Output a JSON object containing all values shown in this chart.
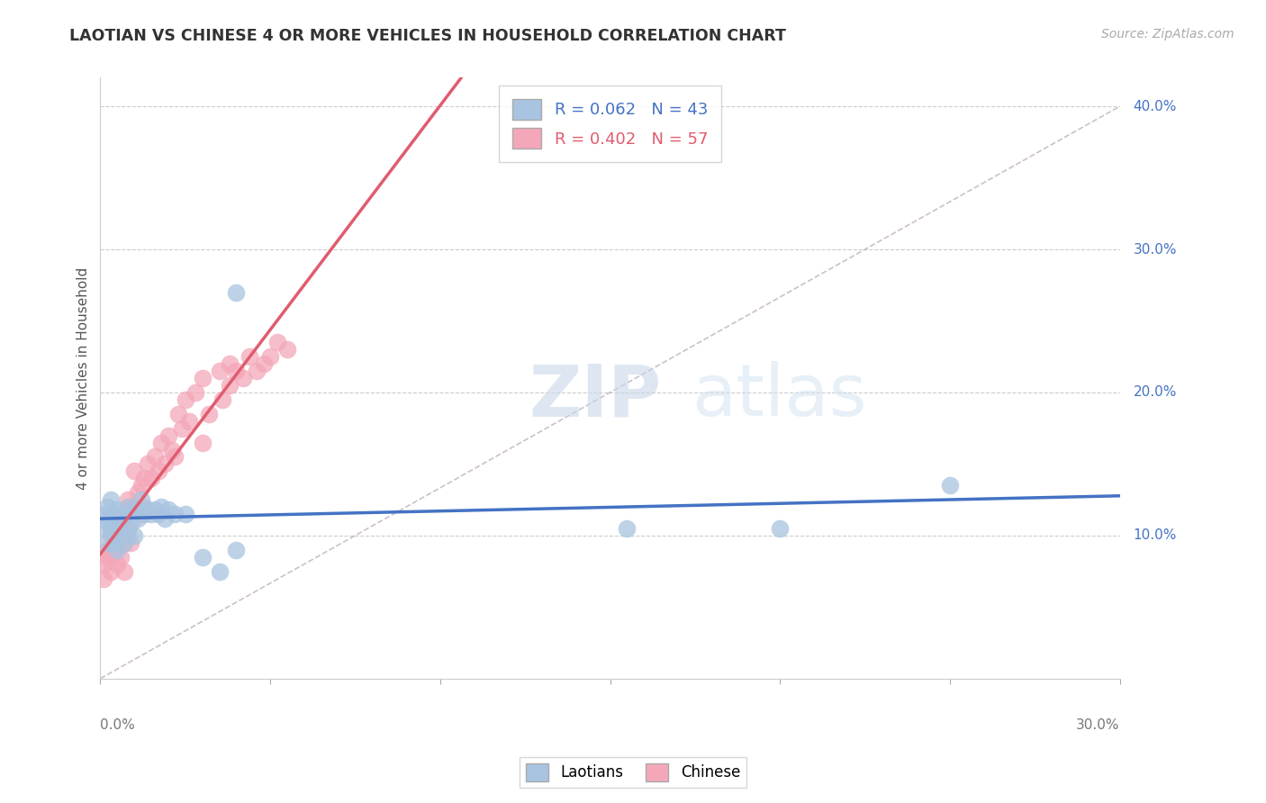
{
  "title": "LAOTIAN VS CHINESE 4 OR MORE VEHICLES IN HOUSEHOLD CORRELATION CHART",
  "source_text": "Source: ZipAtlas.com",
  "ylabel": "4 or more Vehicles in Household",
  "ylabel_ticks": [
    "10.0%",
    "20.0%",
    "30.0%",
    "40.0%"
  ],
  "xlim": [
    0.0,
    0.3
  ],
  "ylim": [
    0.0,
    0.42
  ],
  "yticks": [
    0.1,
    0.2,
    0.3,
    0.4
  ],
  "xticks": [
    0.0,
    0.05,
    0.1,
    0.15,
    0.2,
    0.25,
    0.3
  ],
  "laotian_x": [
    0.001,
    0.001,
    0.002,
    0.002,
    0.002,
    0.003,
    0.003,
    0.003,
    0.004,
    0.004,
    0.004,
    0.005,
    0.005,
    0.005,
    0.006,
    0.006,
    0.007,
    0.007,
    0.008,
    0.008,
    0.009,
    0.009,
    0.01,
    0.01,
    0.011,
    0.012,
    0.013,
    0.014,
    0.015,
    0.016,
    0.017,
    0.018,
    0.019,
    0.02,
    0.022,
    0.025,
    0.03,
    0.035,
    0.04,
    0.04,
    0.155,
    0.2,
    0.25
  ],
  "laotian_y": [
    0.115,
    0.105,
    0.12,
    0.11,
    0.095,
    0.115,
    0.105,
    0.125,
    0.112,
    0.1,
    0.095,
    0.118,
    0.108,
    0.09,
    0.115,
    0.105,
    0.112,
    0.095,
    0.12,
    0.1,
    0.115,
    0.108,
    0.118,
    0.1,
    0.112,
    0.125,
    0.115,
    0.118,
    0.115,
    0.118,
    0.115,
    0.12,
    0.112,
    0.118,
    0.115,
    0.115,
    0.085,
    0.075,
    0.09,
    0.27,
    0.105,
    0.105,
    0.135
  ],
  "chinese_x": [
    0.001,
    0.001,
    0.002,
    0.002,
    0.003,
    0.003,
    0.003,
    0.004,
    0.004,
    0.005,
    0.005,
    0.005,
    0.006,
    0.006,
    0.007,
    0.007,
    0.007,
    0.008,
    0.008,
    0.009,
    0.009,
    0.01,
    0.01,
    0.011,
    0.012,
    0.012,
    0.013,
    0.013,
    0.014,
    0.015,
    0.016,
    0.017,
    0.018,
    0.019,
    0.02,
    0.021,
    0.022,
    0.023,
    0.024,
    0.025,
    0.026,
    0.028,
    0.03,
    0.03,
    0.032,
    0.035,
    0.036,
    0.038,
    0.038,
    0.04,
    0.042,
    0.044,
    0.046,
    0.048,
    0.05,
    0.052,
    0.055
  ],
  "chinese_y": [
    0.08,
    0.07,
    0.09,
    0.085,
    0.1,
    0.085,
    0.075,
    0.1,
    0.09,
    0.11,
    0.095,
    0.08,
    0.105,
    0.085,
    0.115,
    0.095,
    0.075,
    0.125,
    0.105,
    0.12,
    0.095,
    0.145,
    0.12,
    0.13,
    0.135,
    0.115,
    0.14,
    0.12,
    0.15,
    0.14,
    0.155,
    0.145,
    0.165,
    0.15,
    0.17,
    0.16,
    0.155,
    0.185,
    0.175,
    0.195,
    0.18,
    0.2,
    0.165,
    0.21,
    0.185,
    0.215,
    0.195,
    0.205,
    0.22,
    0.215,
    0.21,
    0.225,
    0.215,
    0.22,
    0.225,
    0.235,
    0.23
  ],
  "laotian_color": "#a8c4e0",
  "chinese_color": "#f4a7b9",
  "laotian_line_color": "#4472c4",
  "chinese_line_color": "#e05c6e",
  "laotian_R": 0.062,
  "laotian_N": 43,
  "chinese_R": 0.402,
  "chinese_N": 57,
  "trend_line_color": "#c0b0c0",
  "watermark_zip": "ZIP",
  "watermark_atlas": "atlas",
  "background_color": "#ffffff"
}
